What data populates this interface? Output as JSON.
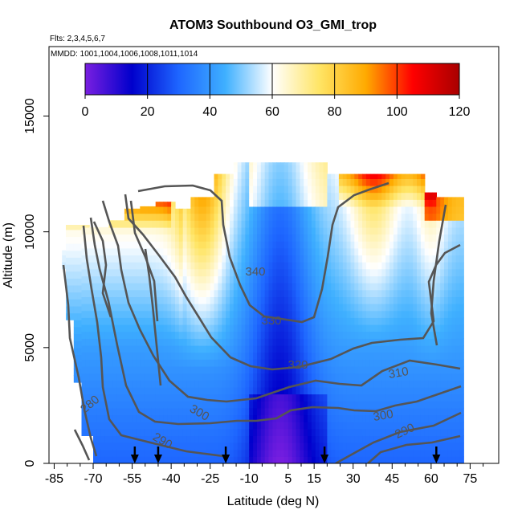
{
  "chart_data": {
    "type": "heatmap",
    "title": "ATOM3 Southbound O3_GMI_trop",
    "subtitle_flights": "Flts: 2,3,4,5,6,7",
    "subtitle_dates": "MMDD: 1001,1004,1006,1008,1011,1014",
    "xlabel": "Latitude (deg N)",
    "ylabel": "Altitude (m)",
    "xlim": [
      -87,
      86
    ],
    "ylim": [
      0,
      18000
    ],
    "x_ticks": [
      -85,
      -70,
      -55,
      -40,
      -25,
      -10,
      5,
      15,
      30,
      45,
      60,
      75
    ],
    "x_tick_labels": [
      "-85",
      "-70",
      "-55",
      "-40",
      "-25",
      "-10",
      "5",
      "15",
      "30",
      "45",
      "60",
      "75"
    ],
    "y_ticks": [
      0,
      5000,
      10000,
      15000
    ],
    "y_tick_labels": [
      "0",
      "5000",
      "10000",
      "15000"
    ],
    "colorbar": {
      "min": 0,
      "max": 120,
      "ticks": [
        0,
        20,
        40,
        60,
        80,
        100,
        120
      ],
      "tick_labels": [
        "0",
        "20",
        "40",
        "60",
        "80",
        "100",
        "120"
      ],
      "colors": [
        "#7a1fe0",
        "#0000cc",
        "#1e66ff",
        "#3fb0ff",
        "#ffffff",
        "#ffe566",
        "#ffaa00",
        "#ff0000",
        "#a80000"
      ]
    },
    "contour_labels": [
      "340",
      "330",
      "320",
      "310",
      "300",
      "290",
      "280",
      "300",
      "290"
    ],
    "arrow_latitudes": [
      -54,
      -45,
      -19,
      19,
      62
    ]
  }
}
